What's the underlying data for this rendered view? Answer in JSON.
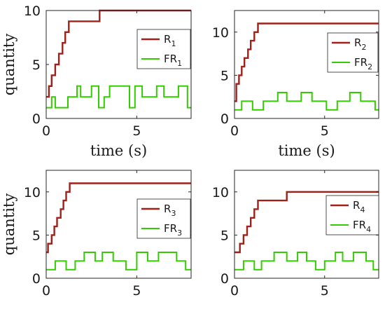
{
  "chart_data": [
    {
      "type": "line",
      "panel": "top-left",
      "xlabel": "time (s)",
      "ylabel": "quantity",
      "xlim": [
        0,
        8
      ],
      "ylim": [
        0,
        10
      ],
      "xticks": [
        0,
        5
      ],
      "yticks": [
        0,
        5,
        10
      ],
      "legend_position": "top-right",
      "series": [
        {
          "name": "R_1",
          "label_main": "R",
          "label_sub": "1",
          "color": "#a0201a",
          "x": [
            0,
            0.15,
            0.15,
            0.3,
            0.3,
            0.5,
            0.5,
            0.7,
            0.7,
            0.9,
            0.9,
            1.05,
            1.05,
            1.25,
            1.25,
            2.95,
            2.95,
            8
          ],
          "y": [
            2,
            2,
            3,
            3,
            4,
            4,
            5,
            5,
            6,
            6,
            7,
            7,
            8,
            8,
            9,
            9,
            10,
            10
          ]
        },
        {
          "name": "FR_1",
          "label_main": "FR",
          "label_sub": "1",
          "color": "#33cc00",
          "x": [
            0,
            0.3,
            0.3,
            0.5,
            0.5,
            1.2,
            1.2,
            1.7,
            1.7,
            1.9,
            1.9,
            2.5,
            2.5,
            2.9,
            2.9,
            3.2,
            3.2,
            3.5,
            3.5,
            4.6,
            4.6,
            4.9,
            4.9,
            5.3,
            5.3,
            6.1,
            6.1,
            6.5,
            6.5,
            7.3,
            7.3,
            7.8,
            7.8,
            8
          ],
          "y": [
            1,
            1,
            2,
            2,
            1,
            1,
            2,
            2,
            3,
            3,
            2,
            2,
            3,
            3,
            1,
            1,
            2,
            2,
            3,
            3,
            1,
            1,
            3,
            3,
            2,
            2,
            3,
            3,
            2,
            2,
            3,
            3,
            1,
            1
          ]
        }
      ]
    },
    {
      "type": "line",
      "panel": "top-right",
      "xlabel": "time (s)",
      "ylabel": "",
      "xlim": [
        0,
        8
      ],
      "ylim": [
        0,
        12.5
      ],
      "xticks": [
        0,
        5
      ],
      "yticks": [
        0,
        5,
        10
      ],
      "legend_position": "top-right",
      "series": [
        {
          "name": "R_2",
          "label_main": "R",
          "label_sub": "2",
          "color": "#a0201a",
          "x": [
            0,
            0.1,
            0.1,
            0.25,
            0.25,
            0.4,
            0.4,
            0.55,
            0.55,
            0.75,
            0.75,
            0.9,
            0.9,
            1.1,
            1.1,
            1.3,
            1.3,
            8
          ],
          "y": [
            2,
            2,
            4,
            4,
            5,
            5,
            6,
            6,
            7,
            7,
            8,
            8,
            9,
            9,
            10,
            10,
            11,
            11
          ]
        },
        {
          "name": "FR_2",
          "label_main": "FR",
          "label_sub": "2",
          "color": "#33cc00",
          "x": [
            0,
            0.4,
            0.4,
            1.0,
            1.0,
            1.6,
            1.6,
            2.4,
            2.4,
            2.9,
            2.9,
            3.7,
            3.7,
            4.3,
            4.3,
            5.1,
            5.1,
            5.7,
            5.7,
            6.4,
            6.4,
            7.0,
            7.0,
            7.8,
            7.8,
            8
          ],
          "y": [
            1,
            1,
            2,
            2,
            1,
            1,
            2,
            2,
            3,
            3,
            2,
            2,
            3,
            3,
            2,
            2,
            1,
            1,
            2,
            2,
            3,
            3,
            2,
            2,
            1,
            1
          ]
        }
      ]
    },
    {
      "type": "line",
      "panel": "bottom-left",
      "xlabel": "",
      "ylabel": "quantity",
      "xlim": [
        0,
        8
      ],
      "ylim": [
        0,
        12.5
      ],
      "xticks": [
        0,
        5
      ],
      "yticks": [
        0,
        5,
        10
      ],
      "legend_position": "right",
      "series": [
        {
          "name": "R_3",
          "label_main": "R",
          "label_sub": "3",
          "color": "#a0201a",
          "x": [
            0,
            0.1,
            0.1,
            0.3,
            0.3,
            0.45,
            0.45,
            0.6,
            0.6,
            0.8,
            0.8,
            0.95,
            0.95,
            1.1,
            1.1,
            1.3,
            1.3,
            8
          ],
          "y": [
            3,
            3,
            4,
            4,
            5,
            5,
            6,
            6,
            7,
            7,
            8,
            8,
            9,
            9,
            10,
            10,
            11,
            11
          ]
        },
        {
          "name": "FR_3",
          "label_main": "FR",
          "label_sub": "3",
          "color": "#33cc00",
          "x": [
            0,
            0.5,
            0.5,
            1.1,
            1.1,
            1.6,
            1.6,
            2.1,
            2.1,
            2.7,
            2.7,
            3.1,
            3.1,
            3.7,
            3.7,
            4.4,
            4.4,
            5.0,
            5.0,
            5.6,
            5.6,
            6.2,
            6.2,
            7.2,
            7.2,
            7.7,
            7.7,
            8
          ],
          "y": [
            1,
            1,
            2,
            2,
            1,
            1,
            2,
            2,
            3,
            3,
            2,
            2,
            3,
            3,
            2,
            2,
            1,
            1,
            3,
            3,
            2,
            2,
            3,
            3,
            2,
            2,
            1,
            1
          ]
        }
      ]
    },
    {
      "type": "line",
      "panel": "bottom-right",
      "xlabel": "",
      "ylabel": "",
      "xlim": [
        0,
        8
      ],
      "ylim": [
        0,
        12.5
      ],
      "xticks": [
        0,
        5
      ],
      "yticks": [
        0,
        5,
        10
      ],
      "legend_position": "right",
      "series": [
        {
          "name": "R_4",
          "label_main": "R",
          "label_sub": "4",
          "color": "#a0201a",
          "x": [
            0,
            0.3,
            0.3,
            0.5,
            0.5,
            0.7,
            0.7,
            0.9,
            0.9,
            1.1,
            1.1,
            1.3,
            1.3,
            2.9,
            2.9,
            8
          ],
          "y": [
            3,
            3,
            4,
            4,
            5,
            5,
            6,
            6,
            7,
            7,
            8,
            8,
            9,
            9,
            10,
            10
          ]
        },
        {
          "name": "FR_4",
          "label_main": "FR",
          "label_sub": "4",
          "color": "#33cc00",
          "x": [
            0,
            0.5,
            0.5,
            1.1,
            1.1,
            1.5,
            1.5,
            2.2,
            2.2,
            2.9,
            2.9,
            3.5,
            3.5,
            4.0,
            4.0,
            4.5,
            4.5,
            5.0,
            5.0,
            5.6,
            5.6,
            6.0,
            6.0,
            6.6,
            6.6,
            7.3,
            7.3,
            7.7,
            7.7,
            8
          ],
          "y": [
            1,
            1,
            2,
            2,
            1,
            1,
            2,
            2,
            3,
            3,
            2,
            2,
            3,
            3,
            2,
            2,
            1,
            1,
            2,
            2,
            3,
            3,
            2,
            2,
            3,
            3,
            2,
            2,
            1,
            1
          ]
        }
      ]
    }
  ]
}
